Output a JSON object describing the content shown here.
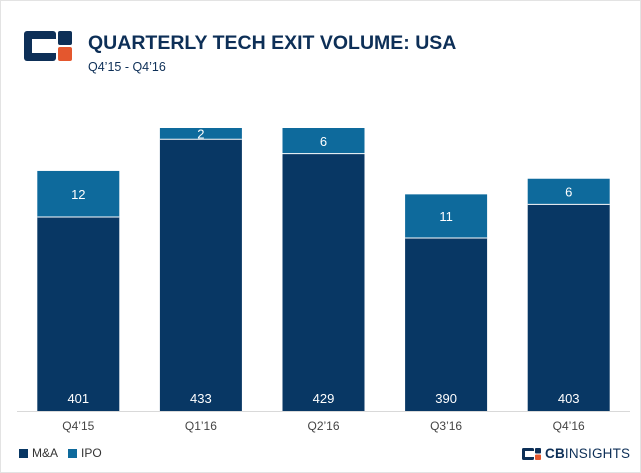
{
  "header": {
    "title": "QUARTERLY TECH EXIT VOLUME: USA",
    "subtitle": "Q4’15 - Q4’16"
  },
  "brand": {
    "bold": "CB",
    "rest": "INSIGHTS"
  },
  "colors": {
    "ma": "#083764",
    "ipo": "#0e6a9c",
    "title": "#0d2f57",
    "logo_orange": "#e4572e"
  },
  "chart_data": {
    "type": "bar",
    "stacked": true,
    "title": "QUARTERLY TECH EXIT VOLUME: USA",
    "subtitle": "Q4’15 - Q4’16",
    "categories": [
      "Q4’15",
      "Q1’16",
      "Q2’16",
      "Q3’16",
      "Q4’16"
    ],
    "series": [
      {
        "name": "M&A",
        "values": [
          401,
          433,
          429,
          390,
          403
        ]
      },
      {
        "name": "IPO",
        "values": [
          12,
          2,
          6,
          11,
          6
        ]
      }
    ],
    "legend": "bottom-left",
    "xlabel": "",
    "ylabel": "",
    "grid": false
  }
}
